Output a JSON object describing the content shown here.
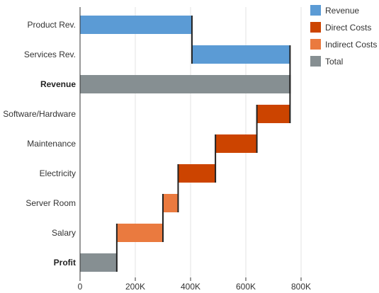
{
  "chart_data": {
    "type": "bar",
    "orientation": "horizontal",
    "subtype": "waterfall",
    "title": "",
    "xlabel": "",
    "ylabel": "",
    "xlim": [
      0,
      800000
    ],
    "x_ticks": [
      0,
      200000,
      400000,
      600000,
      800000
    ],
    "x_tick_labels": [
      "0",
      "200K",
      "400K",
      "600K",
      "800K"
    ],
    "grid": true,
    "legend_position": "right",
    "legend": [
      {
        "name": "Revenue",
        "color": "#5b9bd5"
      },
      {
        "name": "Direct Costs",
        "color": "#cc4400"
      },
      {
        "name": "Indirect Costs",
        "color": "#ea7a3f"
      },
      {
        "name": "Total",
        "color": "#868f92"
      }
    ],
    "categories": [
      "Product Rev.",
      "Services Rev.",
      "Revenue",
      "Software/Hardware",
      "Maintenance",
      "Electricity",
      "Server Room",
      "Salary",
      "Profit"
    ],
    "bold_categories": [
      "Revenue",
      "Profit"
    ],
    "bars": [
      {
        "category": "Product Rev.",
        "series": "Revenue",
        "start": 0,
        "end": 405000
      },
      {
        "category": "Services Rev.",
        "series": "Revenue",
        "start": 405000,
        "end": 760000
      },
      {
        "category": "Revenue",
        "series": "Total",
        "start": 0,
        "end": 760000
      },
      {
        "category": "Software/Hardware",
        "series": "Direct Costs",
        "start": 640000,
        "end": 760000
      },
      {
        "category": "Maintenance",
        "series": "Direct Costs",
        "start": 490000,
        "end": 640000
      },
      {
        "category": "Electricity",
        "series": "Direct Costs",
        "start": 355000,
        "end": 490000
      },
      {
        "category": "Server Room",
        "series": "Indirect Costs",
        "start": 300000,
        "end": 355000
      },
      {
        "category": "Salary",
        "series": "Indirect Costs",
        "start": 133000,
        "end": 300000
      },
      {
        "category": "Profit",
        "series": "Total",
        "start": 0,
        "end": 133000
      }
    ]
  }
}
